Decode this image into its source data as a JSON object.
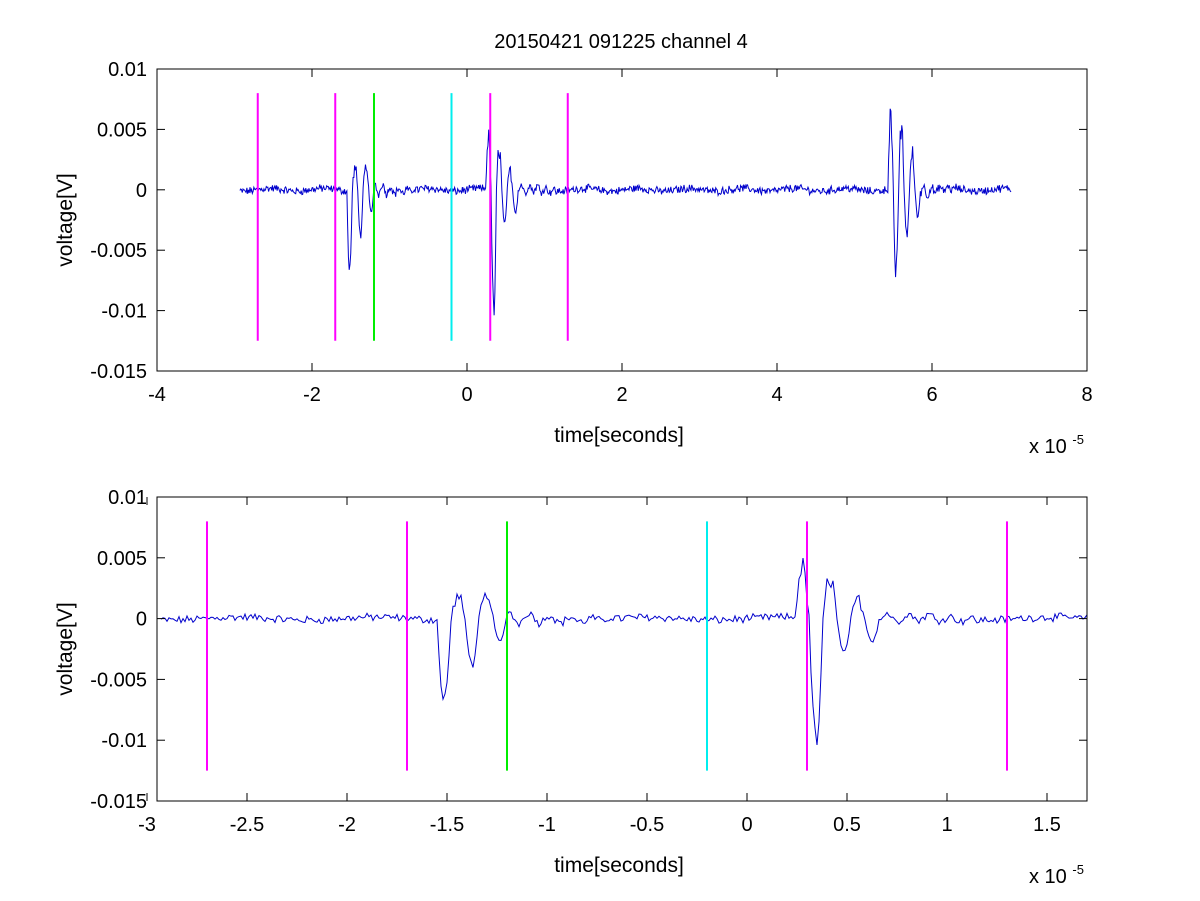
{
  "figure": {
    "title": "20150421 091225 channel 4"
  },
  "chart_data": [
    {
      "type": "line",
      "panel": "top",
      "title": "20150421 091225 channel 4",
      "xlabel": "time[seconds]",
      "ylabel": "voltage[V]",
      "x_exponent_base": "x 10",
      "x_exponent_power": "-5",
      "xlim": [
        -4,
        8
      ],
      "ylim": [
        -0.015,
        0.01
      ],
      "xticks": [
        -4,
        -2,
        0,
        2,
        4,
        6,
        8
      ],
      "xtick_labels": [
        "-4",
        "-2",
        "0",
        "2",
        "4",
        "6",
        "8"
      ],
      "yticks": [
        -0.015,
        -0.01,
        -0.005,
        0,
        0.005,
        0.01
      ],
      "ytick_labels": [
        "-0.015",
        "-0.01",
        "-0.005",
        "0",
        "0.005",
        "0.01"
      ],
      "grid": false,
      "signal": {
        "color": "#0000cc",
        "x_range": [
          -2.93,
          7.02
        ],
        "bursts": [
          {
            "t": -1.43,
            "amps": [
              -0.0076,
              0.0022,
              -0.0045,
              0.0018,
              -0.0022
            ]
          },
          {
            "t": 0.36,
            "amps": [
              0.005,
              -0.0113,
              0.0042,
              -0.003,
              0.002,
              -0.0022
            ]
          },
          {
            "t": 5.55,
            "amps": [
              0.0072,
              -0.0078,
              0.0058,
              -0.0045,
              0.0035,
              -0.0025
            ]
          }
        ]
      },
      "markers": [
        {
          "x": -2.7,
          "color": "#ff00ff",
          "y_range": [
            -0.0125,
            0.008
          ]
        },
        {
          "x": -1.7,
          "color": "#ff00ff",
          "y_range": [
            -0.0125,
            0.008
          ]
        },
        {
          "x": -1.2,
          "color": "#00ee00",
          "y_range": [
            -0.0125,
            0.008
          ]
        },
        {
          "x": -0.2,
          "color": "#00eeee",
          "y_range": [
            -0.0125,
            0.008
          ]
        },
        {
          "x": 0.3,
          "color": "#ff00ff",
          "y_range": [
            -0.0125,
            0.008
          ]
        },
        {
          "x": 1.3,
          "color": "#ff00ff",
          "y_range": [
            -0.0125,
            0.008
          ]
        }
      ]
    },
    {
      "type": "line",
      "panel": "bottom",
      "title": "",
      "xlabel": "time[seconds]",
      "ylabel": "voltage[V]",
      "x_exponent_base": "x 10",
      "x_exponent_power": "-5",
      "xlim": [
        -2.95,
        1.7
      ],
      "ylim": [
        -0.015,
        0.01
      ],
      "xticks": [
        -3,
        -2.5,
        -2,
        -1.5,
        -1,
        -0.5,
        0,
        0.5,
        1,
        1.5
      ],
      "xtick_labels": [
        "-3",
        "-2.5",
        "-2",
        "-1.5",
        "-1",
        "-0.5",
        "0",
        "0.5",
        "1",
        "1.5"
      ],
      "yticks": [
        -0.015,
        -0.01,
        -0.005,
        0,
        0.005,
        0.01
      ],
      "ytick_labels": [
        "-0.015",
        "-0.01",
        "-0.005",
        "0",
        "0.005",
        "0.01"
      ],
      "grid": false,
      "signal": {
        "color": "#0000cc",
        "x_range": [
          -2.93,
          1.7
        ],
        "bursts": [
          {
            "t": -1.43,
            "amps": [
              -0.0076,
              0.0022,
              -0.0045,
              0.0018,
              -0.0022
            ]
          },
          {
            "t": 0.36,
            "amps": [
              0.005,
              -0.0113,
              0.0042,
              -0.003,
              0.002,
              -0.0022
            ]
          }
        ]
      },
      "markers": [
        {
          "x": -2.7,
          "color": "#ff00ff",
          "y_range": [
            -0.0125,
            0.008
          ]
        },
        {
          "x": -1.7,
          "color": "#ff00ff",
          "y_range": [
            -0.0125,
            0.008
          ]
        },
        {
          "x": -1.2,
          "color": "#00ee00",
          "y_range": [
            -0.0125,
            0.008
          ]
        },
        {
          "x": -0.2,
          "color": "#00eeee",
          "y_range": [
            -0.0125,
            0.008
          ]
        },
        {
          "x": 0.3,
          "color": "#ff00ff",
          "y_range": [
            -0.0125,
            0.008
          ]
        },
        {
          "x": 1.3,
          "color": "#ff00ff",
          "y_range": [
            -0.0125,
            0.008
          ]
        }
      ]
    }
  ]
}
